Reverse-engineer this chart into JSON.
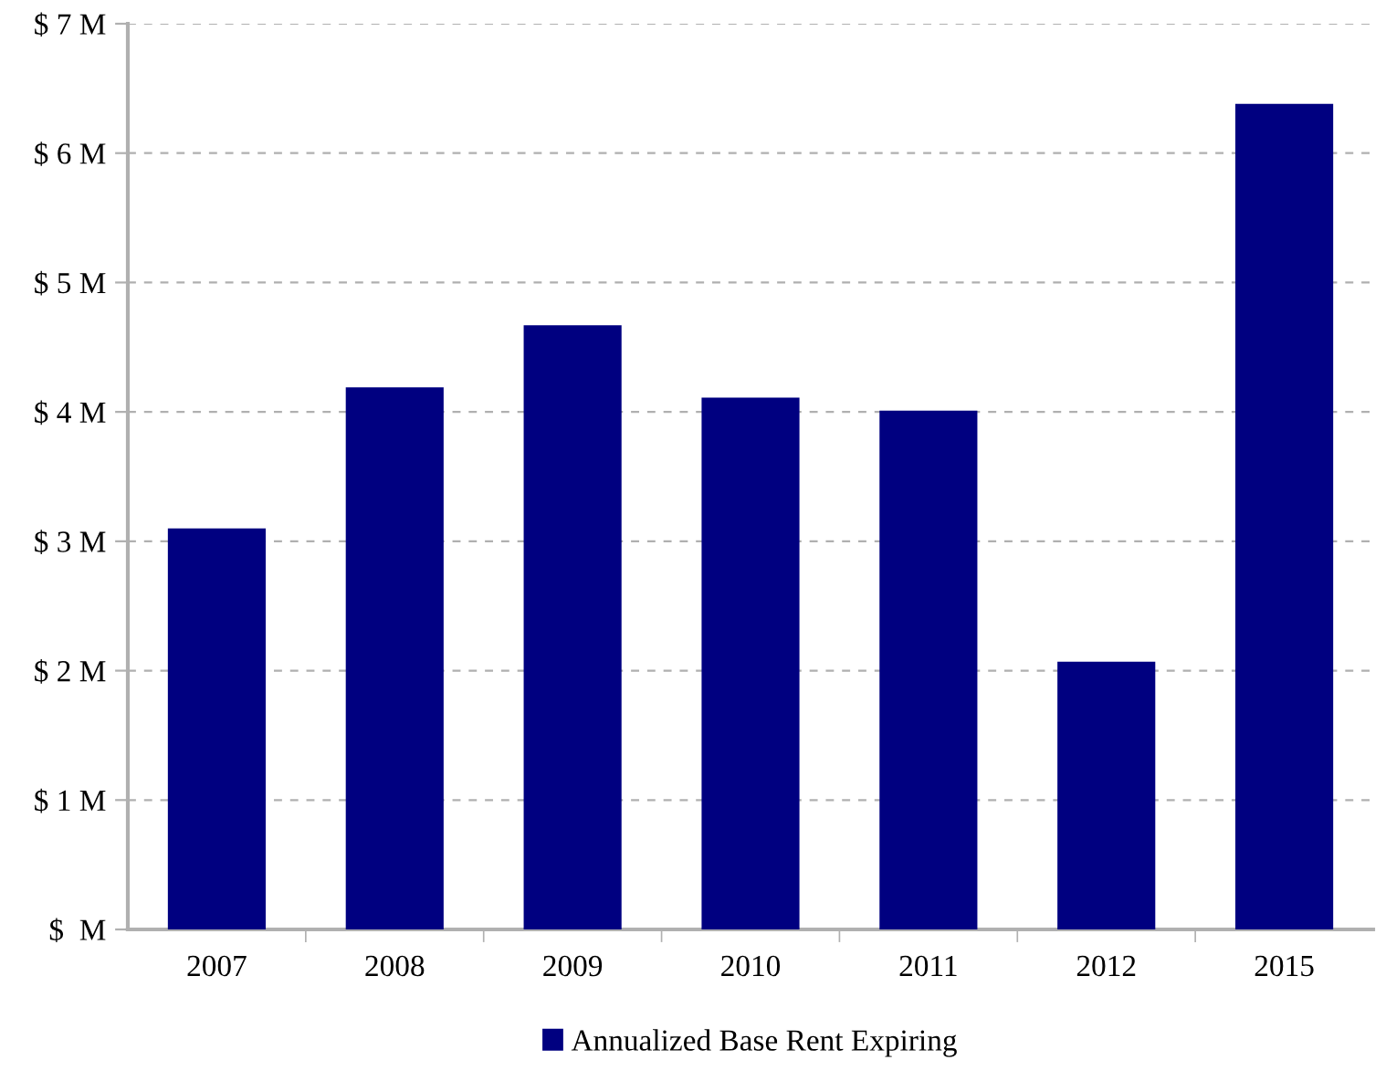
{
  "chart_data": {
    "type": "bar",
    "categories": [
      "2007",
      "2008",
      "2009",
      "2010",
      "2011",
      "2012",
      "2015"
    ],
    "series": [
      {
        "name": "Annualized Base Rent Expiring",
        "color": "#000080",
        "values": [
          3.1,
          4.19,
          4.67,
          4.11,
          4.01,
          2.07,
          6.38
        ]
      }
    ],
    "ylim": [
      0,
      7
    ],
    "yticks": [
      {
        "value": 0,
        "label": "$  M"
      },
      {
        "value": 1,
        "label": "$ 1 M"
      },
      {
        "value": 2,
        "label": "$ 2 M"
      },
      {
        "value": 3,
        "label": "$ 3 M"
      },
      {
        "value": 4,
        "label": "$ 4 M"
      },
      {
        "value": 5,
        "label": "$ 5 M"
      },
      {
        "value": 6,
        "label": "$ 6 M"
      },
      {
        "value": 7,
        "label": "$ 7 M"
      }
    ],
    "grid": "y",
    "legend": "bottom"
  }
}
